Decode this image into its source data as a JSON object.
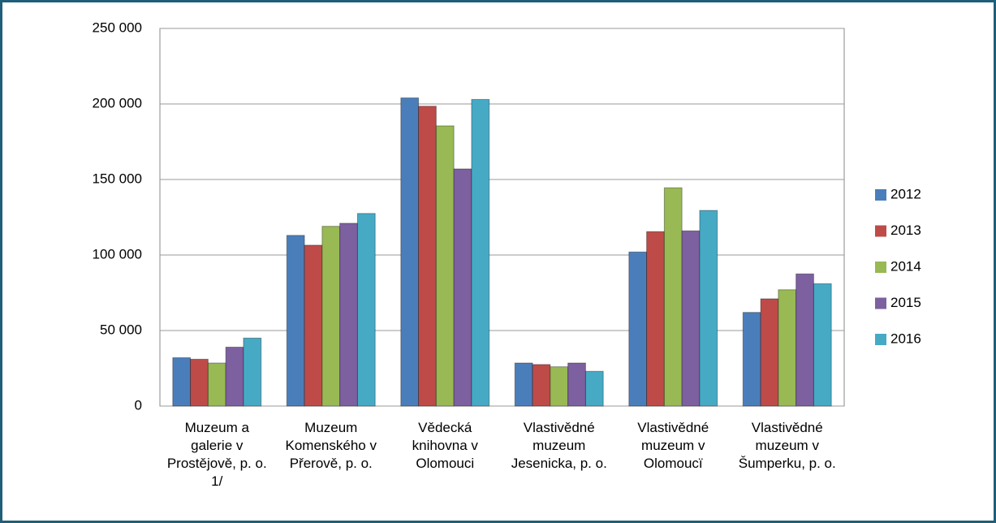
{
  "chart_data": {
    "type": "bar",
    "categories": [
      "Muzeum a galerie v Prostějově, p. o. 1/",
      "Muzeum Komenského v Přerově, p. o.",
      "Vědecká knihovna v Olomouci",
      "Vlastivědné muzeum Jesenicka, p. o.",
      "Vlastivědné muzeum v Olomoucï",
      "Vlastivědné muzeum v Šumperku, p. o."
    ],
    "series": [
      {
        "name": "2012",
        "color": "#4a7ebb",
        "values": [
          32000,
          113000,
          204000,
          28500,
          102000,
          62000
        ]
      },
      {
        "name": "2013",
        "color": "#be4b48",
        "values": [
          31000,
          106500,
          198500,
          27500,
          115500,
          71000
        ]
      },
      {
        "name": "2014",
        "color": "#98b954",
        "values": [
          28500,
          119000,
          185500,
          26000,
          144500,
          77000
        ]
      },
      {
        "name": "2015",
        "color": "#7d60a0",
        "values": [
          39000,
          121000,
          157000,
          28500,
          116000,
          87500
        ]
      },
      {
        "name": "2016",
        "color": "#46aac5",
        "values": [
          45000,
          127500,
          203000,
          23000,
          129500,
          81000
        ]
      }
    ],
    "ylim": [
      0,
      250000
    ],
    "yticks": [
      0,
      {
        "value": 50000,
        "label": "50 000"
      },
      {
        "value": 100000,
        "label": "100 000"
      },
      {
        "value": 150000,
        "label": "150 000"
      },
      {
        "value": 200000,
        "label": "200 000"
      },
      {
        "value": 250000,
        "label": "250 000"
      }
    ],
    "grid": true,
    "legend": "right"
  }
}
